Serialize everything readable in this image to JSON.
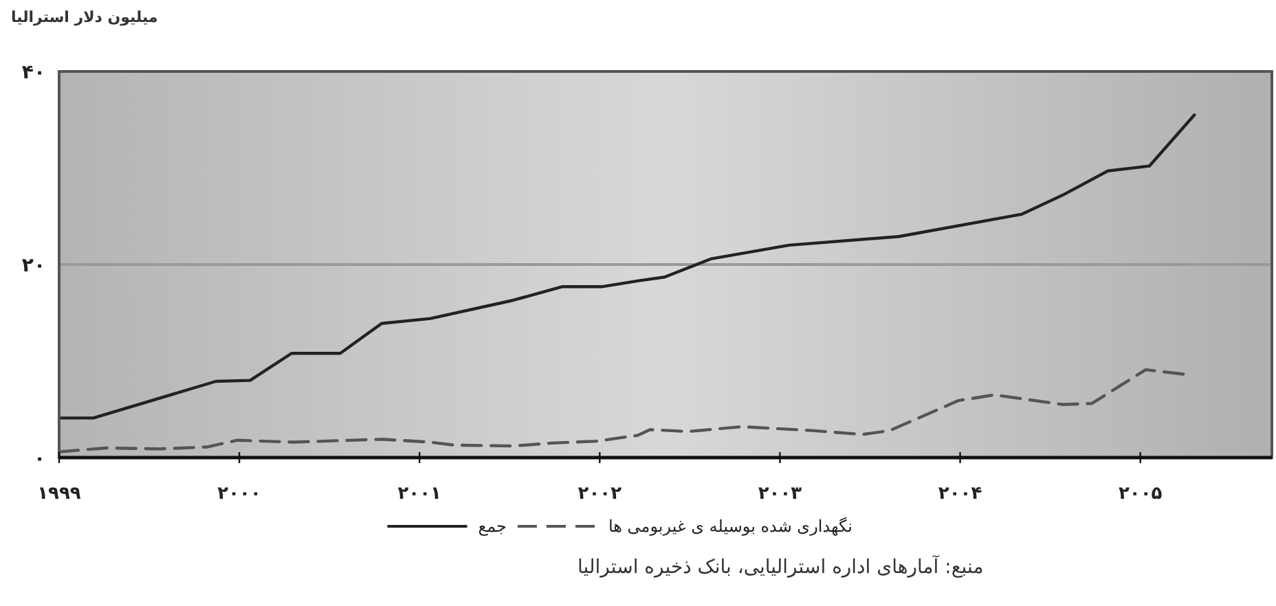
{
  "chart_data": {
    "type": "line",
    "ylabel": "میلیون دلار استرالیا",
    "annotations": [
      "منبع: آمارهای اداره استرالیایی، بانک ذخیره استرالیا"
    ],
    "xlim": [
      1999,
      2005.73
    ],
    "xticks": [
      {
        "value": 1999,
        "label": "۱۹۹۹"
      },
      {
        "value": 2000,
        "label": "۲۰۰۰"
      },
      {
        "value": 2001,
        "label": "۲۰۰۱"
      },
      {
        "value": 2002,
        "label": "۲۰۰۲"
      },
      {
        "value": 2003,
        "label": "۲۰۰۳"
      },
      {
        "value": 2004,
        "label": "۲۰۰۴"
      },
      {
        "value": 2005,
        "label": "۲۰۰۵"
      }
    ],
    "ylim": [
      0,
      40
    ],
    "yticks": [
      {
        "value": 0,
        "label": "۰"
      },
      {
        "value": 20,
        "label": "۲۰"
      },
      {
        "value": 40,
        "label": "۴۰"
      }
    ],
    "grid": "y",
    "legend": "bottom",
    "series": [
      {
        "name": "نگهداری شده بوسیله ی غیربومی ها",
        "color": "#555555",
        "line_style": "dashed",
        "x": [
          1999.0,
          1999.26,
          1999.56,
          1999.82,
          1999.99,
          2000.3,
          2000.79,
          2001.06,
          2001.19,
          2001.52,
          2001.73,
          2001.98,
          2002.21,
          2002.28,
          2002.49,
          2002.79,
          2003.18,
          2003.46,
          2003.61,
          2003.99,
          2004.19,
          2004.57,
          2004.73,
          2005.03,
          2005.26
        ],
        "values": [
          0.6,
          1.0,
          0.9,
          1.1,
          1.8,
          1.6,
          1.9,
          1.6,
          1.3,
          1.2,
          1.5,
          1.7,
          2.3,
          2.9,
          2.7,
          3.2,
          2.8,
          2.4,
          2.8,
          5.9,
          6.5,
          5.5,
          5.6,
          9.1,
          8.6
        ]
      },
      {
        "name": "جمع",
        "color": "#222222",
        "line_style": "solid",
        "x": [
          1999.0,
          1999.19,
          1999.87,
          2000.06,
          2000.29,
          2000.56,
          2000.79,
          2001.06,
          2001.52,
          2001.79,
          2002.01,
          2002.21,
          2002.36,
          2002.62,
          2003.05,
          2003.66,
          2004.34,
          2004.57,
          2004.82,
          2005.05,
          2005.3
        ],
        "values": [
          4.1,
          4.1,
          7.9,
          8.0,
          10.8,
          10.8,
          13.9,
          14.4,
          16.3,
          17.7,
          17.7,
          18.3,
          18.7,
          20.6,
          22.0,
          22.9,
          25.2,
          27.2,
          29.7,
          30.2,
          35.5
        ]
      }
    ]
  }
}
